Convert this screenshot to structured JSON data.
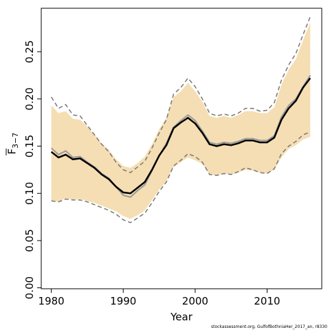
{
  "chart_data": {
    "type": "line",
    "xlabel": "Year",
    "ylabel": "F",
    "ylabel_sub": "3−7",
    "footer": "stockassessment.org, GulfofBothniaHer_2017_an, r8330",
    "x": [
      1980,
      1981,
      1982,
      1983,
      1984,
      1985,
      1986,
      1987,
      1988,
      1989,
      1990,
      1991,
      1992,
      1993,
      1994,
      1995,
      1996,
      1997,
      1998,
      1999,
      2000,
      2001,
      2002,
      2003,
      2004,
      2005,
      2006,
      2007,
      2008,
      2009,
      2010,
      2011,
      2012,
      2013,
      2014,
      2015,
      2016
    ],
    "xlim": [
      1978.6,
      2017.6
    ],
    "xticks": [
      1980,
      1990,
      2000,
      2010
    ],
    "ylim": [
      -0.001,
      0.296
    ],
    "yticks": [
      {
        "value": 0,
        "label": "0.00"
      },
      0.05,
      {
        "value": 0.1,
        "label": "0.10"
      },
      0.15,
      {
        "value": 0.2,
        "label": "0.20"
      },
      0.25
    ],
    "band": {
      "color": "#f5deb3",
      "upper": [
        0.193,
        0.185,
        0.187,
        0.179,
        0.178,
        0.171,
        0.162,
        0.153,
        0.146,
        0.136,
        0.129,
        0.127,
        0.132,
        0.139,
        0.152,
        0.168,
        0.18,
        0.202,
        0.208,
        0.217,
        0.208,
        0.197,
        0.182,
        0.18,
        0.182,
        0.18,
        0.183,
        0.187,
        0.187,
        0.185,
        0.185,
        0.191,
        0.215,
        0.231,
        0.242,
        0.262,
        0.281
      ],
      "lower": [
        0.092,
        0.091,
        0.095,
        0.093,
        0.094,
        0.092,
        0.09,
        0.087,
        0.084,
        0.081,
        0.076,
        0.073,
        0.077,
        0.082,
        0.093,
        0.104,
        0.113,
        0.128,
        0.133,
        0.138,
        0.135,
        0.131,
        0.12,
        0.119,
        0.121,
        0.12,
        0.122,
        0.125,
        0.124,
        0.122,
        0.121,
        0.125,
        0.138,
        0.147,
        0.151,
        0.157,
        0.16
      ]
    },
    "series": [
      {
        "color": "#777777",
        "dashed": true,
        "values": [
          0.202,
          0.19,
          0.194,
          0.183,
          0.182,
          0.172,
          0.162,
          0.152,
          0.144,
          0.133,
          0.125,
          0.122,
          0.128,
          0.134,
          0.148,
          0.164,
          0.178,
          0.205,
          0.212,
          0.222,
          0.213,
          0.2,
          0.185,
          0.182,
          0.184,
          0.182,
          0.185,
          0.19,
          0.19,
          0.187,
          0.188,
          0.196,
          0.22,
          0.236,
          0.248,
          0.268,
          0.287
        ]
      },
      {
        "color": "#777777",
        "dashed": true,
        "values": [
          0.092,
          0.091,
          0.094,
          0.093,
          0.093,
          0.091,
          0.088,
          0.085,
          0.082,
          0.078,
          0.072,
          0.069,
          0.074,
          0.079,
          0.09,
          0.102,
          0.112,
          0.129,
          0.135,
          0.142,
          0.139,
          0.133,
          0.12,
          0.119,
          0.121,
          0.12,
          0.123,
          0.127,
          0.125,
          0.122,
          0.121,
          0.126,
          0.142,
          0.15,
          0.155,
          0.162,
          0.165
        ]
      },
      {
        "color": "#999999",
        "dashed": false,
        "values": [
          0.148,
          0.141,
          0.145,
          0.138,
          0.139,
          0.133,
          0.128,
          0.121,
          0.116,
          0.107,
          0.098,
          0.096,
          0.103,
          0.109,
          0.124,
          0.14,
          0.153,
          0.17,
          0.177,
          0.183,
          0.177,
          0.166,
          0.154,
          0.152,
          0.154,
          0.153,
          0.155,
          0.158,
          0.158,
          0.156,
          0.156,
          0.161,
          0.181,
          0.193,
          0.2,
          0.213,
          0.225
        ]
      },
      {
        "color": "#000000",
        "dashed": false,
        "values": [
          0.144,
          0.138,
          0.141,
          0.136,
          0.137,
          0.132,
          0.127,
          0.12,
          0.115,
          0.107,
          0.101,
          0.1,
          0.106,
          0.112,
          0.125,
          0.14,
          0.151,
          0.169,
          0.175,
          0.18,
          0.174,
          0.164,
          0.152,
          0.15,
          0.152,
          0.151,
          0.153,
          0.156,
          0.156,
          0.154,
          0.154,
          0.159,
          0.178,
          0.19,
          0.198,
          0.212,
          0.222
        ]
      }
    ]
  }
}
